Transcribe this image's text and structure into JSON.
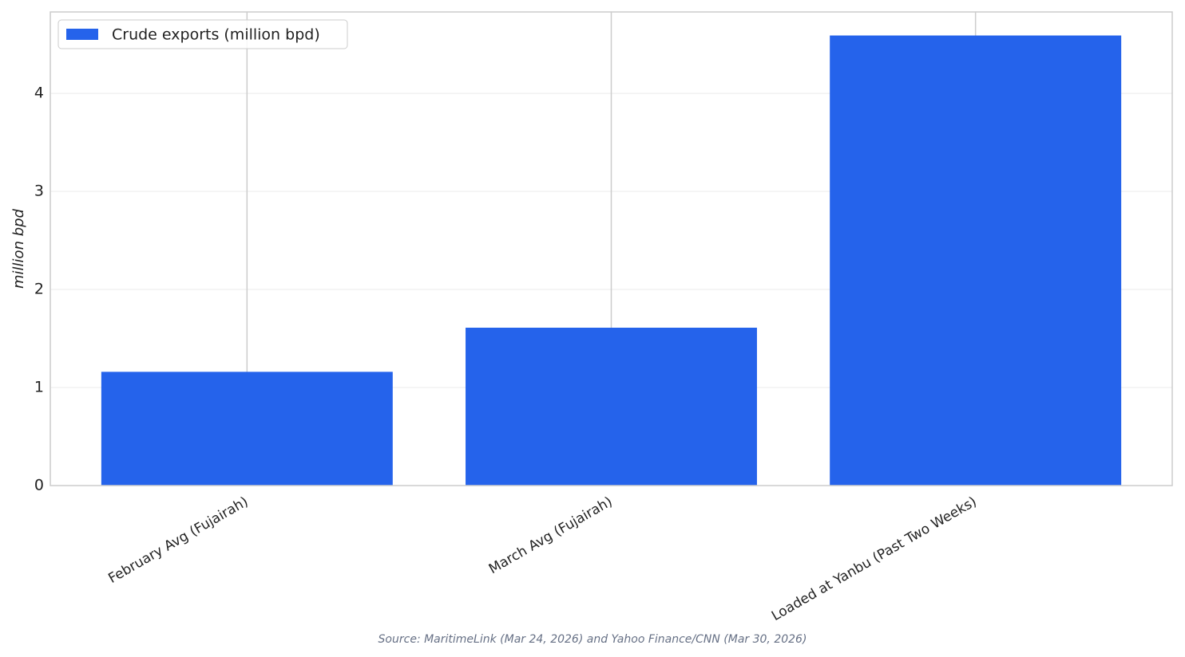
{
  "chart_data": {
    "type": "bar",
    "categories": [
      "February Avg (Fujairah)",
      "March Avg (Fujairah)",
      "Loaded at Yanbu (Past Two Weeks)"
    ],
    "series": [
      {
        "name": "Crude exports (million bpd)",
        "color": "#2563eb",
        "values": [
          1.16,
          1.61,
          4.59
        ]
      }
    ],
    "y_label": "million bpd",
    "ylim": [
      0,
      4.83
    ],
    "yticks": [
      0,
      1,
      2,
      3,
      4
    ],
    "grid": true,
    "legend_position": "upper-left",
    "source": "Source: MaritimeLink (Mar 24, 2026) and Yahoo Finance/CNN (Mar 30, 2026)"
  }
}
